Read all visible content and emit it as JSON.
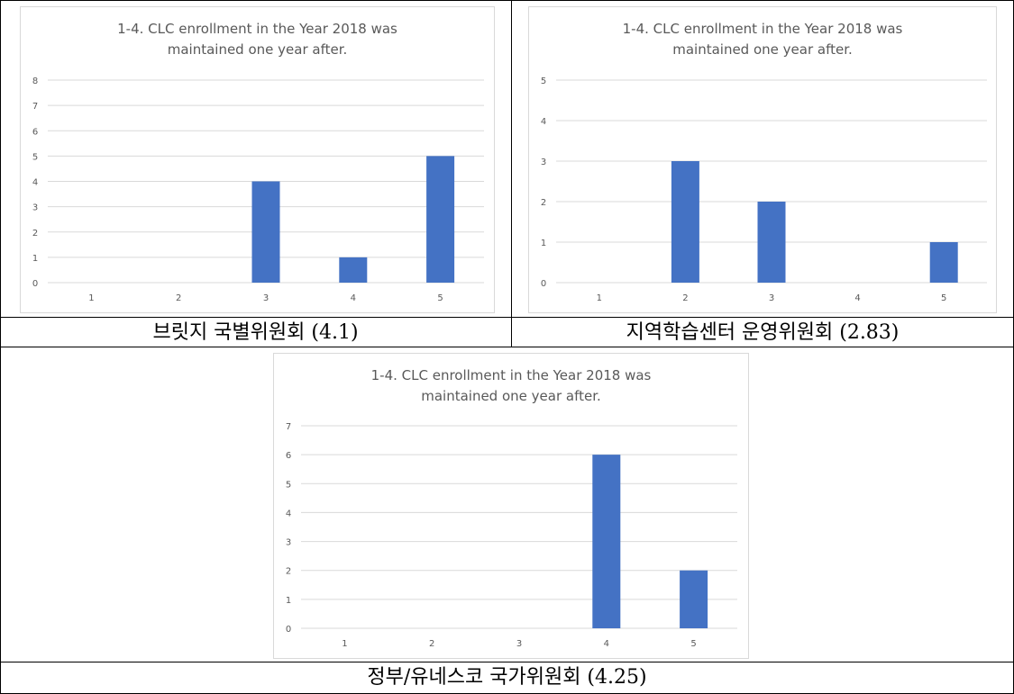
{
  "chart_data": [
    {
      "type": "bar",
      "title_line1": "1-4. CLC enrollment in the Year 2018 was",
      "title_line2": "maintained one year after.",
      "categories": [
        "1",
        "2",
        "3",
        "4",
        "5"
      ],
      "values": [
        0,
        0,
        4,
        1,
        5
      ],
      "ylim": [
        0,
        8
      ],
      "yticks": [
        "0",
        "1",
        "2",
        "3",
        "4",
        "5",
        "6",
        "7",
        "8"
      ],
      "grid": true,
      "bar_color": "#4472c4",
      "caption": "브릿지 국별위원회 (4.1)"
    },
    {
      "type": "bar",
      "title_line1": "1-4. CLC enrollment in the Year 2018 was",
      "title_line2": "maintained one year after.",
      "categories": [
        "1",
        "2",
        "3",
        "4",
        "5"
      ],
      "values": [
        0,
        3,
        2,
        0,
        1
      ],
      "ylim": [
        0,
        5
      ],
      "yticks": [
        "0",
        "1",
        "2",
        "3",
        "4",
        "5"
      ],
      "grid": true,
      "bar_color": "#4472c4",
      "caption": "지역학습센터 운영위원회 (2.83)"
    },
    {
      "type": "bar",
      "title_line1": "1-4. CLC enrollment in the Year 2018 was",
      "title_line2": "maintained one year after.",
      "categories": [
        "1",
        "2",
        "3",
        "4",
        "5"
      ],
      "values": [
        0,
        0,
        0,
        6,
        2
      ],
      "ylim": [
        0,
        7
      ],
      "yticks": [
        "0",
        "1",
        "2",
        "3",
        "4",
        "5",
        "6",
        "7"
      ],
      "grid": true,
      "bar_color": "#4472c4",
      "caption": "정부/유네스코 국가위원회 (4.25)"
    }
  ]
}
